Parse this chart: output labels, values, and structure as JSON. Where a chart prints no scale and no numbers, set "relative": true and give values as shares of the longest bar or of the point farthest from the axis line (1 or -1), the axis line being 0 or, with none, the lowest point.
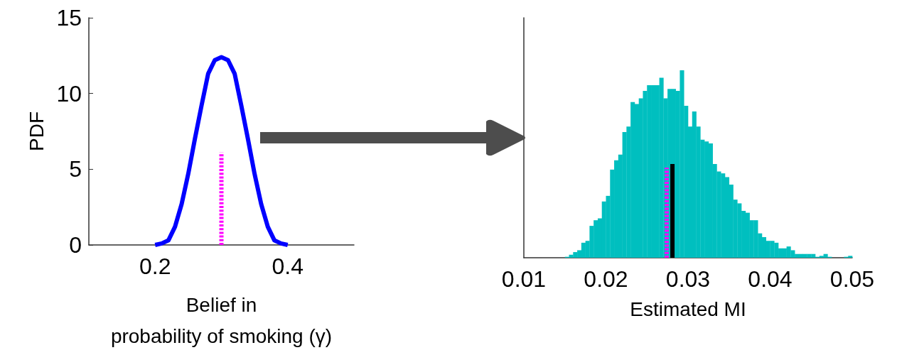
{
  "chart_data": [
    {
      "type": "line",
      "xlabel": "Belief in\nprobability of smoking (γ)",
      "ylabel": "PDF",
      "x": [
        0.2,
        0.21,
        0.22,
        0.23,
        0.24,
        0.25,
        0.26,
        0.27,
        0.28,
        0.29,
        0.3,
        0.31,
        0.32,
        0.33,
        0.34,
        0.35,
        0.36,
        0.37,
        0.38,
        0.39,
        0.4
      ],
      "series": [
        {
          "color": "#0000ff",
          "values": [
            0,
            0.1,
            0.3,
            1.2,
            2.7,
            4.7,
            7,
            9.2,
            11.3,
            12.2,
            12.4,
            12.2,
            11.3,
            9.2,
            7,
            4.7,
            2.7,
            1.2,
            0.3,
            0.1,
            0
          ]
        },
        {
          "x": [
            0.3,
            0.3
          ],
          "values": [
            0,
            6.1
          ],
          "color": "#ff00ff",
          "line_style": "dashed"
        }
      ],
      "xlim": [
        0.1,
        0.5
      ],
      "xticks": [
        0.2,
        0.4
      ],
      "ylim": [
        0,
        15
      ],
      "yticks": [
        0,
        5,
        10,
        15
      ],
      "marker": "none",
      "grid": false
    },
    {
      "type": "histogram",
      "xlabel": "Estimated MI",
      "relative": true,
      "color": "#00bfbf",
      "bins": [
        0.015,
        0.0155,
        0.016,
        0.0165,
        0.017,
        0.0175,
        0.018,
        0.0185,
        0.019,
        0.0195,
        0.02,
        0.0205,
        0.021,
        0.0215,
        0.022,
        0.0225,
        0.023,
        0.0235,
        0.024,
        0.0245,
        0.025,
        0.0255,
        0.026,
        0.0265,
        0.027,
        0.0275,
        0.028,
        0.0285,
        0.029,
        0.0295,
        0.03,
        0.0305,
        0.031,
        0.0315,
        0.032,
        0.0325,
        0.033,
        0.0335,
        0.034,
        0.0345,
        0.035,
        0.0355,
        0.036,
        0.0365,
        0.037,
        0.0375,
        0.038,
        0.0385,
        0.039,
        0.0395,
        0.04,
        0.0405,
        0.041,
        0.0415,
        0.042,
        0.0425,
        0.043,
        0.0435,
        0.044,
        0.0445,
        0.045,
        0.0455,
        0.046,
        0.0465,
        0.047,
        0.0475,
        0.048,
        0.0485,
        0.049,
        0.0495,
        0.05
      ],
      "values": [
        0.005,
        0.016,
        0.03,
        0.04,
        0.08,
        0.09,
        0.17,
        0.2,
        0.21,
        0.3,
        0.33,
        0.47,
        0.52,
        0.55,
        0.67,
        0.7,
        0.83,
        0.82,
        0.85,
        0.89,
        0.92,
        0.92,
        0.92,
        0.96,
        0.85,
        0.9,
        0.9,
        0.89,
        1,
        0.81,
        0.7,
        0.78,
        0.7,
        0.63,
        0.62,
        0.61,
        0.5,
        0.46,
        0.45,
        0.43,
        0.39,
        0.31,
        0.29,
        0.25,
        0.24,
        0.2,
        0.2,
        0.13,
        0.11,
        0.09,
        0.09,
        0.08,
        0.05,
        0.05,
        0.06,
        0.04,
        0.02,
        0.02,
        0.02,
        0.02,
        0.02,
        0.005,
        0.01,
        0.02,
        0.005,
        0,
        0,
        0,
        0.005,
        0.01
      ],
      "series": [
        {
          "type": "line",
          "x": [
            0.0274,
            0.0274
          ],
          "values": [
            0,
            0.48
          ],
          "color": "#ff00ff",
          "line_style": "dashed"
        },
        {
          "type": "line",
          "x": [
            0.0281,
            0.0281
          ],
          "values": [
            0,
            0.5
          ],
          "color": "#000000",
          "line_style": "solid"
        }
      ],
      "xlim": [
        0.01,
        0.05
      ],
      "xticks": [
        0.01,
        0.02,
        0.03,
        0.04,
        0.05
      ],
      "marker": "none",
      "grid": false
    }
  ]
}
